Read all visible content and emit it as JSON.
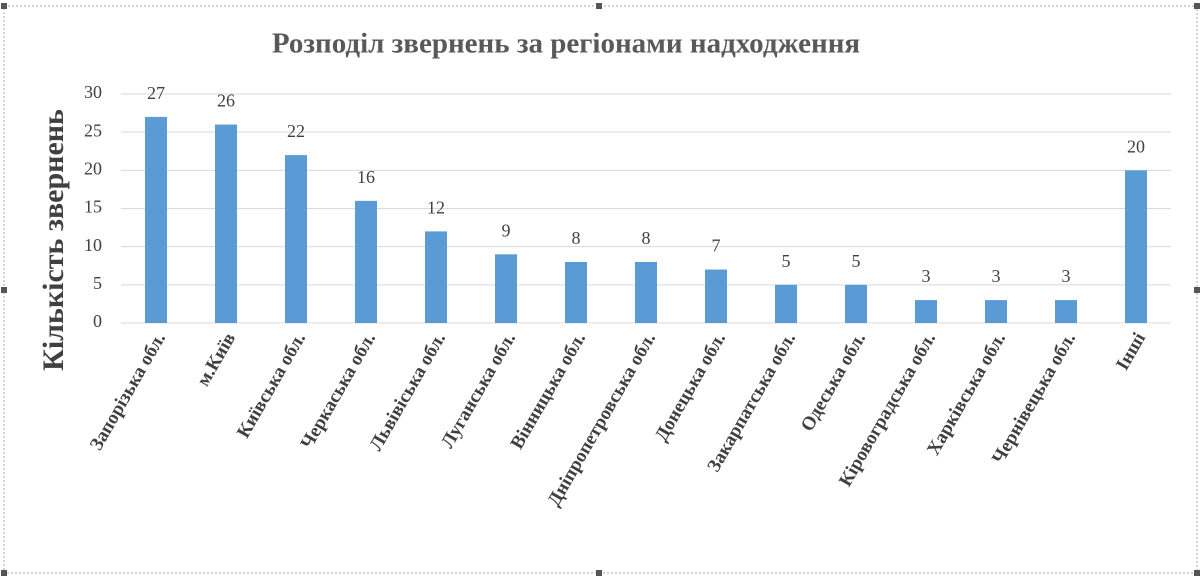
{
  "chart_data": {
    "type": "bar",
    "title": "Розподіл звернень за регіонами надходження",
    "y_label": "Кількість звернень",
    "categories": [
      "Запорізька обл.",
      "м.Київ",
      "Київська обл.",
      "Черкаська обл.",
      "Львівіська обл.",
      "Луганська обл.",
      "Вінницька обл.",
      "Дніпропетровська обл.",
      "Донецька обл.",
      "Закарпатська обл.",
      "Одеська обл.",
      "Кіровоградська обл.",
      "Харківська обл.",
      "Чернівецька обл.",
      "Інші"
    ],
    "values": [
      27,
      26,
      22,
      16,
      12,
      9,
      8,
      8,
      7,
      5,
      5,
      3,
      3,
      3,
      20
    ],
    "color": "#5b9bd5",
    "ylim": [
      0,
      30
    ],
    "yticks": [
      0,
      5,
      10,
      15,
      20,
      25,
      30
    ],
    "grid": true
  }
}
